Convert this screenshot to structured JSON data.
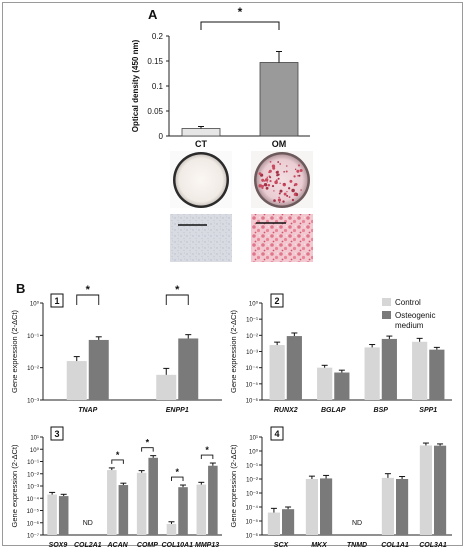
{
  "colors": {
    "control": "#d6d6d6",
    "osteogenic": "#7a7a7a",
    "panelA_ct": "#e6e6e6",
    "panelA_om": "#9a9a9a",
    "axis": "#222222"
  },
  "panel_a": {
    "label": "A",
    "images": [
      {
        "group": "CT",
        "well": "white-well",
        "micro": "pale-grey-field"
      },
      {
        "group": "OM",
        "well": "red-speckled-well",
        "micro": "red-stained-field"
      }
    ]
  },
  "panel_b": {
    "label": "B",
    "legend": [
      "Control",
      "Osteogenic",
      "medium"
    ],
    "nd_label": "ND"
  },
  "chart_data": [
    {
      "id": "A",
      "type": "bar",
      "categories": [
        "CT",
        "OM"
      ],
      "values": [
        0.015,
        0.147
      ],
      "errors": [
        0.004,
        0.022
      ],
      "ylabel": "Optical density (450 nm)",
      "ylim": [
        0,
        0.2
      ],
      "yticks": [
        "0",
        "0.05",
        "0.1",
        "0.15",
        "0.2"
      ],
      "significance": [
        {
          "pair": [
            0,
            1
          ],
          "label": "*"
        }
      ]
    },
    {
      "id": "1",
      "type": "bar",
      "log_scale": true,
      "categories": [
        "TNAP",
        "ENPP1"
      ],
      "series": [
        {
          "name": "Control",
          "values": [
            0.016,
            0.006
          ],
          "errors": [
            0.006,
            0.0035
          ]
        },
        {
          "name": "Osteogenic medium",
          "values": [
            0.072,
            0.08
          ],
          "errors": [
            0.018,
            0.025
          ]
        }
      ],
      "ylabel": "Gene expression (2-ΔCt)",
      "ylim": [
        0.001,
        1
      ],
      "yticks": [
        "10⁻³",
        "10⁻²",
        "10⁻¹",
        "10⁰"
      ],
      "significance": [
        {
          "category": 0,
          "label": "*"
        },
        {
          "category": 1,
          "label": "*"
        }
      ]
    },
    {
      "id": "2",
      "type": "bar",
      "log_scale": true,
      "categories": [
        "RUNX2",
        "BGLAP",
        "BSP",
        "SPP1"
      ],
      "series": [
        {
          "name": "Control",
          "values": [
            0.0025,
            0.0001,
            0.0018,
            0.004
          ],
          "errors": [
            0.0013,
            4e-05,
            0.0009,
            0.0025
          ]
        },
        {
          "name": "Osteogenic medium",
          "values": [
            0.009,
            5e-05,
            0.006,
            0.0013
          ],
          "errors": [
            0.005,
            2e-05,
            0.003,
            0.0005
          ]
        }
      ],
      "ylabel": "Gene expression (2-ΔCt)",
      "ylim": [
        1e-06,
        1
      ],
      "yticks": [
        "10⁻⁶",
        "10⁻⁵",
        "10⁻⁴",
        "10⁻³",
        "10⁻²",
        "10⁻¹",
        "10⁰"
      ]
    },
    {
      "id": "3",
      "type": "bar",
      "log_scale": true,
      "categories": [
        "SOX9",
        "COL2A1",
        "ACAN",
        "COMP",
        "COL10A1",
        "MMP13"
      ],
      "series": [
        {
          "name": "Control",
          "values": [
            0.0002,
            null,
            0.02,
            0.012,
            8e-07,
            0.0013
          ],
          "errors": [
            0.0001,
            null,
            0.01,
            0.006,
            4e-07,
            0.0007
          ]
        },
        {
          "name": "Osteogenic medium",
          "values": [
            0.00015,
            null,
            0.0012,
            0.2,
            0.0008,
            0.045
          ],
          "errors": [
            6e-05,
            null,
            0.0005,
            0.1,
            0.0004,
            0.03
          ]
        }
      ],
      "not_detected": [
        "COL2A1"
      ],
      "ylabel": "Gene expression (2-ΔCt)",
      "ylim": [
        1e-07,
        10
      ],
      "yticks": [
        "10⁻⁷",
        "10⁻⁶",
        "10⁻⁵",
        "10⁻⁴",
        "10⁻³",
        "10⁻²",
        "10⁻¹",
        "10⁰",
        "10¹"
      ],
      "significance": [
        {
          "category": 2,
          "label": "*"
        },
        {
          "category": 3,
          "label": "*"
        },
        {
          "category": 4,
          "label": "*"
        },
        {
          "category": 5,
          "label": "*"
        }
      ]
    },
    {
      "id": "4",
      "type": "bar",
      "log_scale": true,
      "categories": [
        "SCX",
        "MKX",
        "TNMD",
        "COL1A1",
        "COL3A1"
      ],
      "series": [
        {
          "name": "Control",
          "values": [
            4e-05,
            0.01,
            null,
            0.012,
            2.5
          ],
          "errors": [
            4e-05,
            0.006,
            null,
            0.012,
            1.2
          ]
        },
        {
          "name": "Osteogenic medium",
          "values": [
            7e-05,
            0.011,
            null,
            0.01,
            2.4
          ],
          "errors": [
            3e-05,
            0.007,
            null,
            0.005,
            0.8
          ]
        }
      ],
      "not_detected": [
        "TNMD"
      ],
      "ylabel": "Gene expression (2-ΔCt)",
      "ylim": [
        1e-06,
        10
      ],
      "yticks": [
        "10⁻⁶",
        "10⁻⁵",
        "10⁻⁴",
        "10⁻³",
        "10⁻²",
        "10⁻¹",
        "10⁰",
        "10¹"
      ]
    }
  ]
}
